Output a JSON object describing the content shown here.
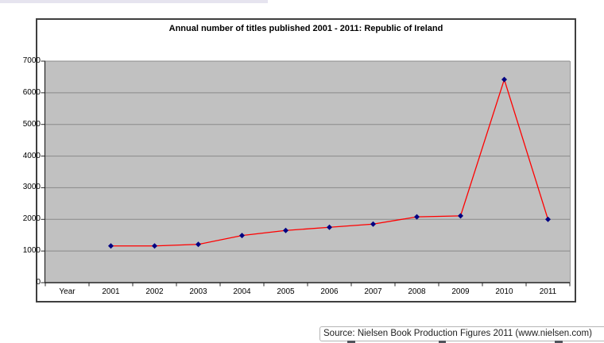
{
  "page": {
    "source_note": "Source: Nielsen Book Production Figures 2011 (www.nielsen.com)"
  },
  "chart_data": {
    "type": "line",
    "title": "Annual number of titles published 2001 - 2011: Republic of Ireland",
    "x_axis_label_slot": "Year",
    "categories": [
      "2001",
      "2002",
      "2003",
      "2004",
      "2005",
      "2006",
      "2007",
      "2008",
      "2009",
      "2010",
      "2011"
    ],
    "values": [
      1160,
      1160,
      1210,
      1490,
      1650,
      1750,
      1850,
      2080,
      2110,
      6420,
      2000
    ],
    "y_ticks": [
      0,
      1000,
      2000,
      3000,
      4000,
      5000,
      6000,
      7000
    ],
    "ylim": [
      0,
      7000
    ],
    "grid": "horizontal",
    "legend": "none",
    "line_color": "#ff0000",
    "marker": "diamond",
    "marker_color": "#000082",
    "plot_bg_color": "#c1c1c1",
    "gridline_color": "#8a8a8a",
    "axis_color": "#262626",
    "frame_border_color": "#3f3f3f"
  }
}
